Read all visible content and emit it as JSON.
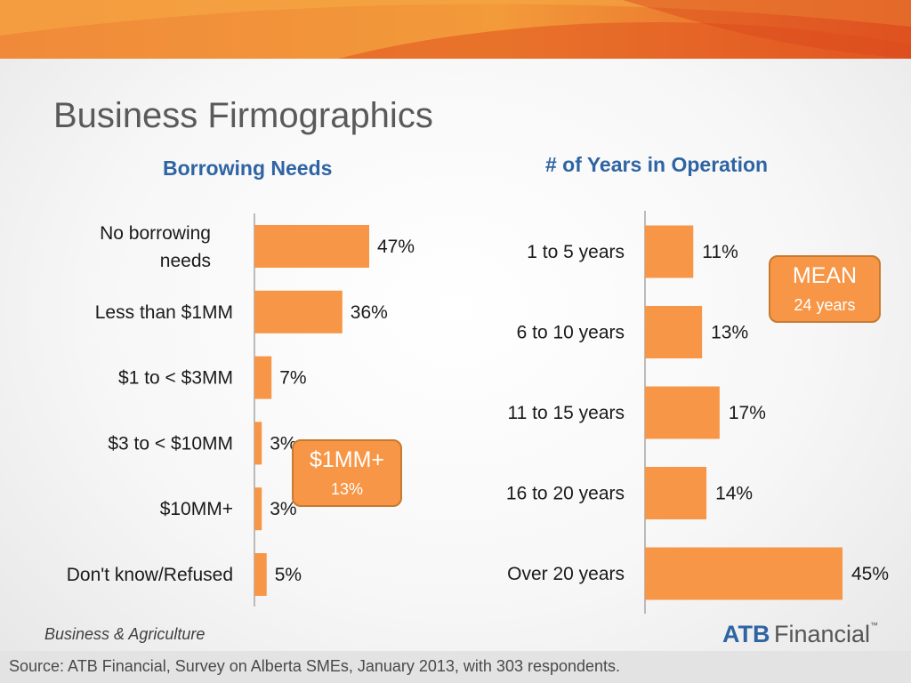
{
  "title": "Business Firmographics",
  "chart_data": [
    {
      "type": "bar",
      "title": "Borrowing Needs",
      "categories": [
        "No borrowing needs",
        "Less than $1MM",
        "$1 to < $3MM",
        "$3 to < $10MM",
        "$10MM+",
        "Don't know/Refused"
      ],
      "values": [
        47,
        36,
        7,
        3,
        3,
        5
      ],
      "value_labels": [
        "47%",
        "36%",
        "7%",
        "3%",
        "3%",
        "5%"
      ],
      "orientation": "horizontal",
      "xlim": [
        0,
        47
      ],
      "color": "#f79646",
      "callout": {
        "title": "$1MM+",
        "value": "13%"
      }
    },
    {
      "type": "bar",
      "title": "# of Years in Operation",
      "categories": [
        "1 to 5 years",
        "6 to 10 years",
        "11 to 15 years",
        "16 to 20 years",
        "Over 20 years"
      ],
      "values": [
        11,
        13,
        17,
        14,
        45
      ],
      "value_labels": [
        "11%",
        "13%",
        "17%",
        "14%",
        "45%"
      ],
      "orientation": "horizontal",
      "xlim": [
        0,
        45
      ],
      "color": "#f79646",
      "callout": {
        "title": "MEAN",
        "value": "24 years"
      }
    }
  ],
  "footer": {
    "section": "Business & Agriculture",
    "logo_brand": "ATB",
    "logo_name": "Financial",
    "logo_tm": "™",
    "source": "Source: ATB Financial, Survey on Alberta SMEs, January 2013, with 303 respondents."
  },
  "colors": {
    "banner": "#e8642a",
    "bar": "#f79646",
    "title_blue": "#2f64a3"
  }
}
